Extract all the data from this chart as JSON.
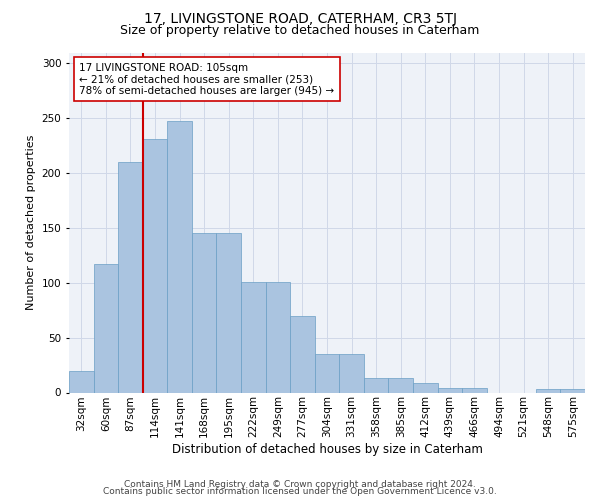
{
  "title": "17, LIVINGSTONE ROAD, CATERHAM, CR3 5TJ",
  "subtitle": "Size of property relative to detached houses in Caterham",
  "xlabel": "Distribution of detached houses by size in Caterham",
  "ylabel": "Number of detached properties",
  "bar_labels": [
    "32sqm",
    "60sqm",
    "87sqm",
    "114sqm",
    "141sqm",
    "168sqm",
    "195sqm",
    "222sqm",
    "249sqm",
    "277sqm",
    "304sqm",
    "331sqm",
    "358sqm",
    "385sqm",
    "412sqm",
    "439sqm",
    "466sqm",
    "494sqm",
    "521sqm",
    "548sqm",
    "575sqm"
  ],
  "bar_values": [
    20,
    117,
    210,
    231,
    248,
    145,
    145,
    101,
    101,
    70,
    35,
    35,
    13,
    13,
    9,
    4,
    4,
    0,
    0,
    3,
    3
  ],
  "bar_color": "#aac4e0",
  "bar_edge_color": "#6a9ec5",
  "vline_color": "#cc0000",
  "annotation_text": "17 LIVINGSTONE ROAD: 105sqm\n← 21% of detached houses are smaller (253)\n78% of semi-detached houses are larger (945) →",
  "annotation_box_color": "#ffffff",
  "annotation_box_edge": "#cc0000",
  "ylim": [
    0,
    310
  ],
  "yticks": [
    0,
    50,
    100,
    150,
    200,
    250,
    300
  ],
  "grid_color": "#d0d8e8",
  "background_color": "#eef2f8",
  "footer_line1": "Contains HM Land Registry data © Crown copyright and database right 2024.",
  "footer_line2": "Contains public sector information licensed under the Open Government Licence v3.0.",
  "title_fontsize": 10,
  "subtitle_fontsize": 9,
  "xlabel_fontsize": 8.5,
  "ylabel_fontsize": 8,
  "tick_fontsize": 7.5,
  "annotation_fontsize": 7.5,
  "footer_fontsize": 6.5
}
